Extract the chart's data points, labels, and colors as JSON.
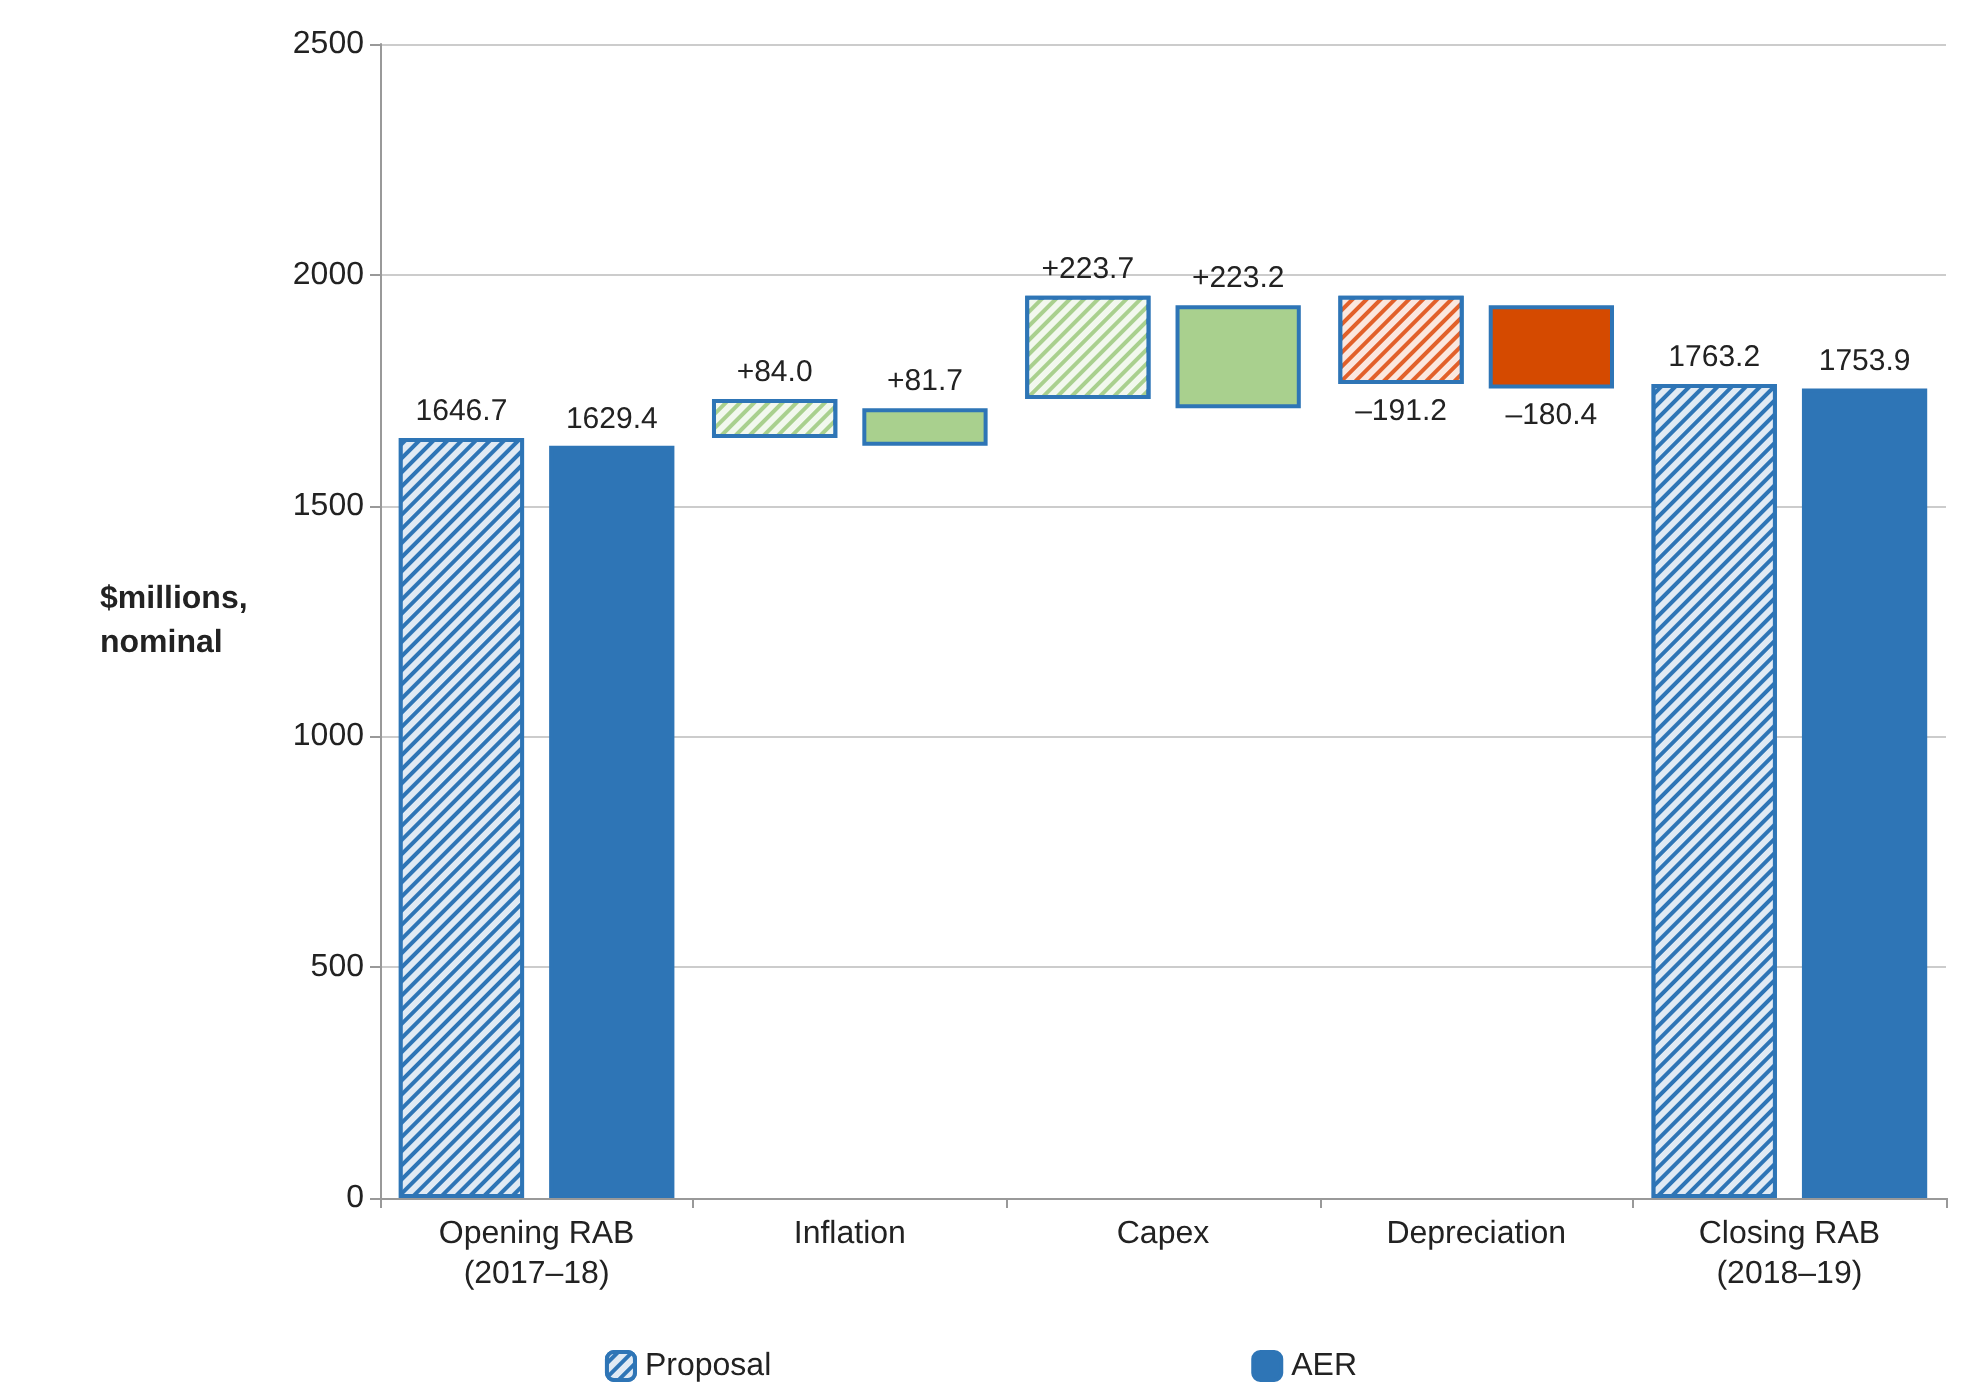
{
  "chart_data": {
    "type": "bar",
    "ylabel": "$millions,\nnominal",
    "categories": [
      "Opening RAB\n(2017–18)",
      "Inflation",
      "Capex",
      "Depreciation",
      "Closing RAB\n(2018–19)"
    ],
    "series": [
      {
        "name": "Proposal",
        "colors": [
          "#2e75b6",
          "#a9d08e",
          "#a9d08e",
          "#e2602a",
          "#2e75b6"
        ],
        "values": [
          1646.7,
          84.0,
          223.7,
          -191.2,
          1763.2
        ],
        "base": [
          0,
          1646.7,
          1730.7,
          1954.4,
          0
        ],
        "value_labels": [
          "1646.7",
          "+84.0",
          "+223.7",
          "–191.2",
          "1763.2"
        ]
      },
      {
        "name": "AER",
        "colors": [
          "#2e75b6",
          "#a9d08e",
          "#a9d08e",
          "#d54a00",
          "#2e75b6"
        ],
        "values": [
          1629.4,
          81.7,
          223.2,
          -180.4,
          1753.9
        ],
        "base": [
          0,
          1629.4,
          1711.1,
          1934.3,
          0
        ],
        "value_labels": [
          "1629.4",
          "+81.7",
          "+223.2",
          "–180.4",
          "1753.9"
        ]
      }
    ],
    "ylim": [
      0,
      2500
    ],
    "yticks": [
      0,
      500,
      1000,
      1500,
      2000,
      2500
    ],
    "grid": "y",
    "legend": "bottom"
  }
}
